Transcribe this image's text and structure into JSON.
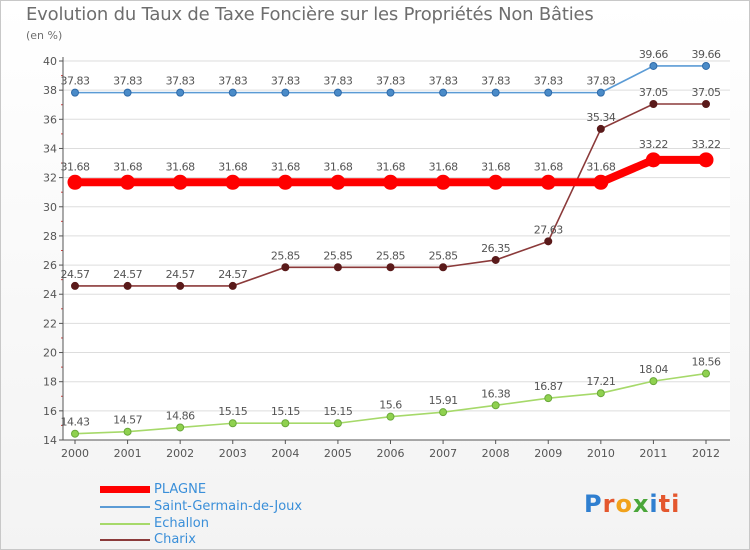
{
  "chart_data": {
    "type": "line",
    "title": "Evolution du Taux de Taxe Foncière sur les Propriétés Non Bâties",
    "ylabel": "(en %)",
    "xlabel": "",
    "ylim": [
      14,
      40
    ],
    "yticks": [
      14,
      16,
      18,
      20,
      22,
      24,
      26,
      28,
      30,
      32,
      34,
      36,
      38,
      40
    ],
    "categories": [
      "2000",
      "2001",
      "2002",
      "2003",
      "2004",
      "2005",
      "2006",
      "2007",
      "2008",
      "2009",
      "2010",
      "2011",
      "2012"
    ],
    "series": [
      {
        "name": "PLAGNE",
        "color": "#ff0000",
        "labelColor": "#555555",
        "values": [
          31.68,
          31.68,
          31.68,
          31.68,
          31.68,
          31.68,
          31.68,
          31.68,
          31.68,
          31.68,
          31.68,
          33.22,
          33.22
        ],
        "labels": [
          "31.68",
          "31.68",
          "31.68",
          "31.68",
          "31.68",
          "31.68",
          "31.68",
          "31.68",
          "31.68",
          "31.68",
          "31.68",
          "33.22",
          "33.22"
        ]
      },
      {
        "name": "Saint-Germain-de-Joux",
        "color": "#5b9bd5",
        "labelColor": "#555555",
        "values": [
          37.83,
          37.83,
          37.83,
          37.83,
          37.83,
          37.83,
          37.83,
          37.83,
          37.83,
          37.83,
          37.83,
          39.66,
          39.66
        ],
        "labels": [
          "37.83",
          "37.83",
          "37.83",
          "37.83",
          "37.83",
          "37.83",
          "37.83",
          "37.83",
          "37.83",
          "37.83",
          "37.83",
          "39.66",
          "39.66"
        ]
      },
      {
        "name": "Echallon",
        "color": "#a6d96a",
        "labelColor": "#555555",
        "values": [
          14.43,
          14.57,
          14.86,
          15.15,
          15.15,
          15.15,
          15.6,
          15.91,
          16.38,
          16.87,
          17.21,
          18.04,
          18.56
        ],
        "labels": [
          "14.43",
          "14.57",
          "14.86",
          "15.15",
          "15.15",
          "15.15",
          "15.6",
          "15.91",
          "16.38",
          "16.87",
          "17.21",
          "18.04",
          "18.56"
        ]
      },
      {
        "name": "Charix",
        "color": "#8b3a3a",
        "labelColor": "#555555",
        "values": [
          24.57,
          24.57,
          24.57,
          24.57,
          25.85,
          25.85,
          25.85,
          25.85,
          26.35,
          27.63,
          35.34,
          37.05,
          37.05
        ],
        "labels": [
          "24.57",
          "24.57",
          "24.57",
          "24.57",
          "25.85",
          "25.85",
          "25.85",
          "25.85",
          "26.35",
          "27.63",
          "35.34",
          "37.05",
          "37.05"
        ]
      }
    ],
    "legend_position": "bottom-left"
  },
  "legend": [
    "PLAGNE",
    "Saint-Germain-de-Joux",
    "Echallon",
    "Charix"
  ],
  "logo": [
    "P",
    "r",
    "o",
    "x",
    "i",
    "ti"
  ]
}
